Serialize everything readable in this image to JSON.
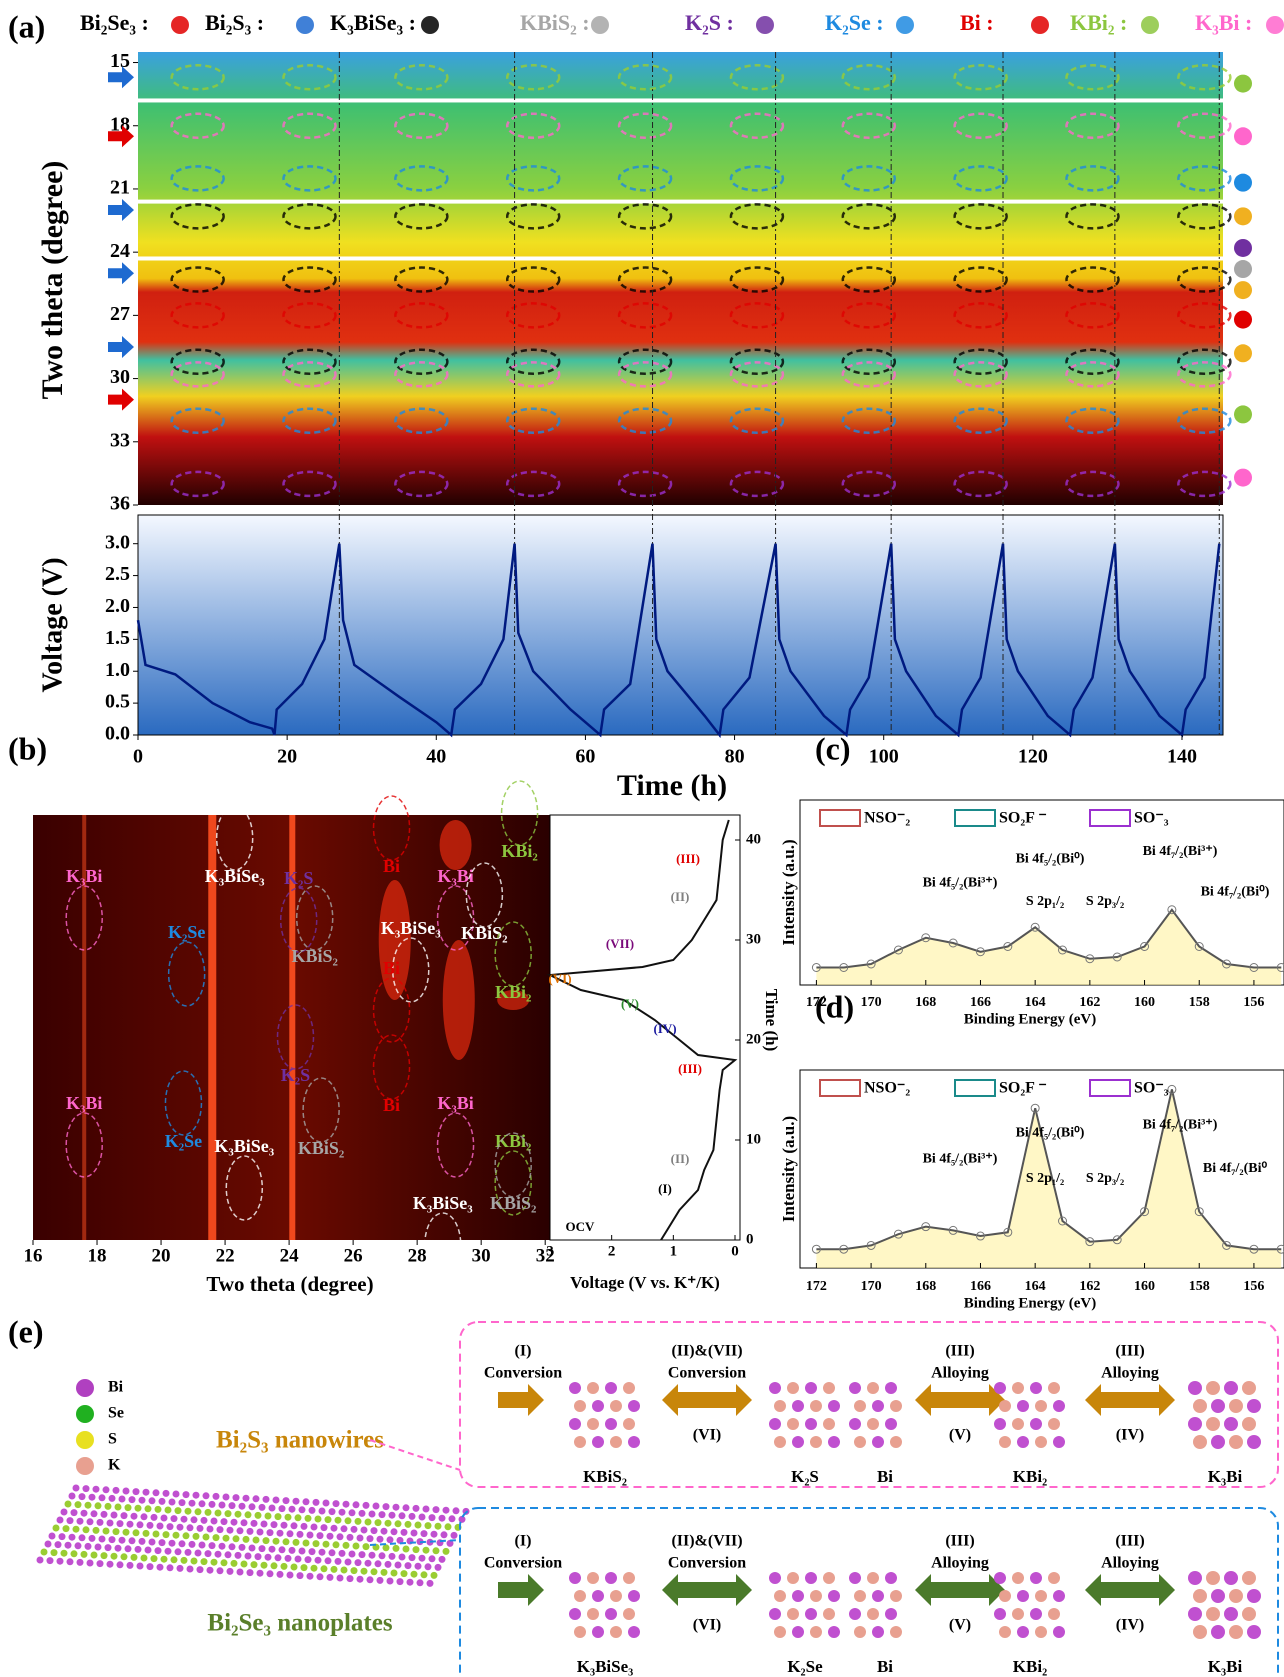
{
  "panel_labels": [
    "(a)",
    "(b)",
    "(c)",
    "(d)",
    "(e)"
  ],
  "legend": [
    {
      "label": "Bi₂Se₃ :",
      "color": "#000000"
    },
    {
      "label": "Bi₂S₃ :",
      "color": "#000000"
    },
    {
      "label": "K₃BiSe₃ :",
      "color": "#000000"
    },
    {
      "label": "KBiS₂ :",
      "color": "#a6a6a6"
    },
    {
      "label": "K₂S :",
      "color": "#7030a0"
    },
    {
      "label": "K₂Se :",
      "color": "#1e8ae0"
    },
    {
      "label": "Bi :",
      "color": "#e00000"
    },
    {
      "label": "KBi₂ :",
      "color": "#8cc63f"
    },
    {
      "label": "K₃Bi :",
      "color": "#ff66cc"
    }
  ],
  "chart_data": [
    {
      "type": "heatmap",
      "ylabel": "Two theta (degree)",
      "ylim": [
        36,
        14.5
      ],
      "yticks": [
        15,
        18,
        21,
        24,
        27,
        30,
        33,
        36
      ]
    },
    {
      "type": "line",
      "xlabel": "Time (h)",
      "ylabel": "Voltage (V)",
      "color": "#001a80",
      "x": [
        0,
        1,
        5,
        10,
        15,
        18,
        18.3,
        18.6,
        22,
        25,
        27,
        27.5,
        29,
        35,
        40,
        42,
        42.5,
        46,
        49,
        50.5,
        51,
        53,
        58,
        62,
        62.5,
        66,
        69,
        69.5,
        71,
        76,
        78,
        78.5,
        82,
        85.5,
        86,
        87.5,
        92,
        95,
        95.5,
        98,
        101,
        101.5,
        103,
        107,
        110,
        110.5,
        113,
        116,
        116.5,
        118,
        122,
        125,
        125.5,
        128,
        131,
        131.5,
        133,
        137,
        140,
        140.5,
        143,
        145
      ],
      "values": [
        1.8,
        1.1,
        0.95,
        0.5,
        0.2,
        0.1,
        0,
        0.4,
        0.8,
        1.5,
        3,
        1.8,
        1.1,
        0.6,
        0.2,
        0,
        0.4,
        0.8,
        1.5,
        3,
        1.6,
        1,
        0.4,
        0,
        0.4,
        0.8,
        3,
        1.5,
        1,
        0.3,
        0,
        0.4,
        0.9,
        3,
        1.5,
        1,
        0.3,
        0,
        0.4,
        0.9,
        3,
        1.5,
        1,
        0.3,
        0,
        0.4,
        0.9,
        3,
        1.5,
        1,
        0.3,
        0,
        0.4,
        0.9,
        3,
        1.5,
        1,
        0.3,
        0,
        0.4,
        0.9,
        3
      ],
      "xlim": [
        0,
        145.5
      ],
      "xticks": [
        0,
        20,
        40,
        60,
        80,
        100,
        120,
        140
      ],
      "ylim": [
        0,
        3.45
      ],
      "yticks": [
        {
          "value": 0,
          "label": "0.0"
        },
        {
          "value": 0.5,
          "label": "0.5"
        },
        {
          "value": 1,
          "label": "1.0"
        },
        {
          "value": 1.5,
          "label": "1.5"
        },
        {
          "value": 2,
          "label": "2.0"
        },
        {
          "value": 2.5,
          "label": "2.5"
        },
        {
          "value": 3,
          "label": "3.0"
        }
      ]
    },
    {
      "type": "heatmap",
      "xlabel": "Two theta (degree)",
      "xlim": [
        16,
        32.15
      ],
      "xticks": [
        16,
        18,
        20,
        22,
        24,
        26,
        28,
        30,
        32
      ],
      "annotations": [
        {
          "text": "K₃Bi",
          "color": "#ff66cc"
        },
        {
          "text": "K₃BiSe₃",
          "color": "#ffffff"
        },
        {
          "text": "K₂S",
          "color": "#7030a0"
        },
        {
          "text": "Bi",
          "color": "#e00000"
        },
        {
          "text": "K₃Bi",
          "color": "#ff66cc"
        },
        {
          "text": "KBi₂",
          "color": "#8cc63f"
        },
        {
          "text": "K₂Se",
          "color": "#1e8ae0"
        },
        {
          "text": "KBiS₂",
          "color": "#a6a6a6"
        },
        {
          "text": "K₃BiSe₃",
          "color": "#ffffff"
        },
        {
          "text": "KBiS₂",
          "color": "#ffffff"
        },
        {
          "text": "Bi",
          "color": "#e00000"
        },
        {
          "text": "KBi₂",
          "color": "#8cc63f"
        },
        {
          "text": "K₃Bi",
          "color": "#ff66cc"
        },
        {
          "text": "K₂S",
          "color": "#7030a0"
        },
        {
          "text": "K₃Bi",
          "color": "#ff66cc"
        },
        {
          "text": "Bi",
          "color": "#e00000"
        },
        {
          "text": "KBi₂",
          "color": "#8cc63f"
        },
        {
          "text": "K₂Se",
          "color": "#1e8ae0"
        },
        {
          "text": "K₃BiSe₃",
          "color": "#ffffff"
        },
        {
          "text": "KBiS₂",
          "color": "#a6a6a6"
        },
        {
          "text": "K₃BiSe₃",
          "color": "#ffffff"
        },
        {
          "text": "KBiS₂",
          "color": "#a6a6a6"
        }
      ]
    },
    {
      "type": "line",
      "xlabel": "Voltage (V vs. K⁺/K)",
      "ylabel": "Time (h)",
      "color": "#111111",
      "x": [
        1.2,
        1.1,
        0.9,
        0.6,
        0.5,
        0.35,
        0.3,
        0.25,
        0.2,
        0,
        0.6,
        0.9,
        1.3,
        1.8,
        2.5,
        3,
        1.5,
        1,
        0.7,
        0.5,
        0.3,
        0.25,
        0.2,
        0.1
      ],
      "values": [
        0,
        1,
        3,
        5,
        7,
        9,
        12,
        15,
        17,
        18,
        18.5,
        20,
        22,
        24,
        25,
        26.5,
        27.3,
        28,
        30,
        32,
        34,
        37,
        40,
        42
      ],
      "xlim": [
        3,
        0
      ],
      "xticks": [
        3,
        2,
        1,
        0
      ],
      "ylim": [
        0,
        42.5
      ],
      "yticks": [
        0,
        10,
        20,
        30,
        40
      ],
      "annotations": [
        {
          "text": "(I)",
          "color": "#000000"
        },
        {
          "text": "(II)",
          "color": "#808080"
        },
        {
          "text": "(III)",
          "color": "#e00000"
        },
        {
          "text": "(IV)",
          "color": "#1a1aa0"
        },
        {
          "text": "(V)",
          "color": "#2a8a2a"
        },
        {
          "text": "(VI)",
          "color": "#e07000"
        },
        {
          "text": "(VII)",
          "color": "#7a0a7a"
        },
        {
          "text": "(II)",
          "color": "#808080"
        },
        {
          "text": "(III)",
          "color": "#e00000"
        },
        {
          "text": "OCV",
          "color": "#000000"
        }
      ]
    },
    {
      "type": "line",
      "xlabel": "Binding Energy (eV)",
      "ylabel": "Intensity (a.u.)",
      "color": "#555555",
      "x": [
        172,
        171,
        170,
        169,
        168,
        167,
        166,
        165,
        164,
        163,
        162,
        161,
        160,
        159,
        158,
        157,
        156,
        155
      ],
      "values": [
        10,
        10,
        12,
        20,
        27,
        24,
        19,
        22,
        33,
        20,
        15,
        16,
        22,
        43,
        22,
        12,
        10,
        10
      ],
      "xlim": [
        172.6,
        154.9
      ],
      "xticks": [
        172,
        170,
        168,
        166,
        164,
        162,
        160,
        158,
        156
      ],
      "ylim": [
        0,
        100
      ],
      "legend": [
        {
          "name": "NSO⁻₂",
          "color": "#c0504d"
        },
        {
          "name": "SO₂F ⁻",
          "color": "#1a8a8a"
        },
        {
          "name": "SO⁻₃",
          "color": "#9b30d0"
        }
      ],
      "annotations": [
        "Bi 4f₅/₂(Bi³⁺)",
        "Bi 4f₅/₂(Bi⁰)",
        "S 2p₁/₂",
        "S 2p₃/₂",
        "Bi 4f₇/₂(Bi³⁺)",
        "Bi 4f₇/₂(Bi⁰)"
      ]
    },
    {
      "type": "line",
      "xlabel": "Binding Energy (eV)",
      "ylabel": "Intensity (a.u.)",
      "color": "#555555",
      "x": [
        172,
        171,
        170,
        169,
        168,
        167,
        166,
        165,
        164,
        163,
        162,
        161,
        160,
        159,
        158,
        157,
        156,
        155
      ],
      "values": [
        10,
        10,
        12,
        18,
        22,
        20,
        17,
        19,
        85,
        25,
        14,
        15,
        30,
        95,
        30,
        12,
        10,
        10
      ],
      "xlim": [
        172.6,
        154.9
      ],
      "xticks": [
        172,
        170,
        168,
        166,
        164,
        162,
        160,
        158,
        156
      ],
      "ylim": [
        0,
        100
      ],
      "legend": [
        {
          "name": "NSO⁻₂",
          "color": "#c0504d"
        },
        {
          "name": "SO₂F ⁻",
          "color": "#1a8a8a"
        },
        {
          "name": "SO⁻₃",
          "color": "#9b30d0"
        }
      ],
      "annotations": [
        "Bi 4f₅/₂(Bi³⁺)",
        "Bi 4f₅/₂(Bi⁰)",
        "S 2p₁/₂",
        "S 2p₃/₂",
        "Bi 4f₇/₂(Bi³⁺)",
        "Bi 4f₇/₂(Bi⁰"
      ]
    }
  ],
  "diagram": {
    "atoms": [
      {
        "name": "Bi",
        "color": "#b040c0"
      },
      {
        "name": "Se",
        "color": "#20b020"
      },
      {
        "name": "S",
        "color": "#e8e020"
      },
      {
        "name": "K",
        "color": "#e8a090"
      }
    ],
    "top": {
      "title": "Bi₂S₃ nanowires",
      "color": "#c8860a",
      "arrows": [
        {
          "above": [
            "(I)",
            "Conversion"
          ]
        },
        {
          "above": [
            "(II)&(VII)",
            "Conversion"
          ],
          "below": "(VI)"
        },
        {
          "above": [
            "(III)",
            "Alloying"
          ],
          "below": "(V)"
        },
        {
          "above": [
            "(III)",
            "Alloying"
          ],
          "below": "(IV)"
        }
      ],
      "species": [
        "KBiS₂",
        "K₂S",
        "Bi",
        "KBi₂",
        "K₃Bi"
      ]
    },
    "bottom": {
      "title": "Bi₂Se₃ nanoplates",
      "color": "#5a7f2a",
      "arrows": [
        {
          "above": [
            "(I)",
            "Conversion"
          ]
        },
        {
          "above": [
            "(II)&(VII)",
            "Conversion"
          ],
          "below": "(VI)"
        },
        {
          "above": [
            "(III)",
            "Alloying"
          ],
          "below": "(V)"
        },
        {
          "above": [
            "(III)",
            "Alloying"
          ],
          "below": "(IV)"
        }
      ],
      "species": [
        "K₃BiSe₃",
        "K₂Se",
        "Bi",
        "KBi₂",
        "K₃Bi"
      ]
    }
  }
}
